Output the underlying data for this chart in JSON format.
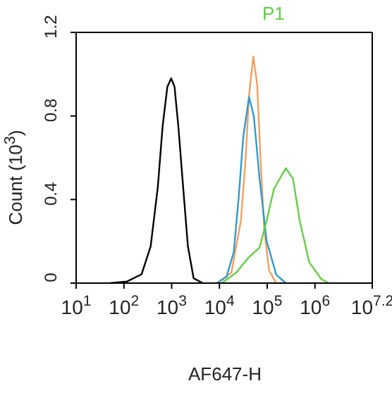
{
  "chart_data": {
    "type": "line",
    "xlabel": "AF647-H",
    "ylabel": "Count (10$^{3}$)",
    "log": "x",
    "annotations": [
      "P1"
    ],
    "xlim": [
      10,
      15848932
    ],
    "xticks": [
      {
        "value": 10,
        "label": "10$^{1}$"
      },
      {
        "value": 100,
        "label": "10$^{2}$"
      },
      {
        "value": 1000,
        "label": "10$^{3}$"
      },
      {
        "value": 10000,
        "label": "10$^{4}$"
      },
      {
        "value": 100000,
        "label": "10$^{5}$"
      },
      {
        "value": 1000000,
        "label": "10$^{6}$"
      },
      {
        "value": 15848932,
        "label": "10$^{7.2}$"
      }
    ],
    "ylim": [
      0,
      1.2
    ],
    "yticks": [
      0,
      0.4,
      0.8,
      1.2
    ],
    "series": [
      {
        "color": "#000000",
        "x": [
          52,
          117,
          234,
          363,
          513,
          646,
          813,
          977,
          1148,
          1380,
          1738,
          2188,
          2884,
          4467
        ],
        "values": [
          0,
          0.008,
          0.042,
          0.176,
          0.46,
          0.75,
          0.94,
          0.98,
          0.94,
          0.75,
          0.46,
          0.176,
          0.023,
          0
        ]
      },
      {
        "color": "#f0a060",
        "x": [
          8910,
          17800,
          28200,
          35500,
          41700,
          51300,
          61700,
          72400,
          87100,
          110000,
          155000
        ],
        "values": [
          0,
          0.05,
          0.3,
          0.6,
          0.9,
          1.085,
          0.95,
          0.6,
          0.25,
          0.06,
          0
        ]
      },
      {
        "color": "#3399cc",
        "x": [
          8910,
          14100,
          20000,
          25100,
          31600,
          41700,
          52500,
          69200,
          97700,
          155000,
          245000
        ],
        "values": [
          0,
          0.03,
          0.15,
          0.4,
          0.7,
          0.89,
          0.8,
          0.5,
          0.2,
          0.04,
          0
        ]
      },
      {
        "color": "#66cc44",
        "x": [
          11200,
          22400,
          39800,
          69200,
          97700,
          138000,
          245000,
          347000,
          479000,
          759000,
          1350000,
          1910000
        ],
        "values": [
          0,
          0.05,
          0.12,
          0.17,
          0.3,
          0.45,
          0.55,
          0.5,
          0.3,
          0.1,
          0.02,
          0
        ]
      }
    ]
  }
}
